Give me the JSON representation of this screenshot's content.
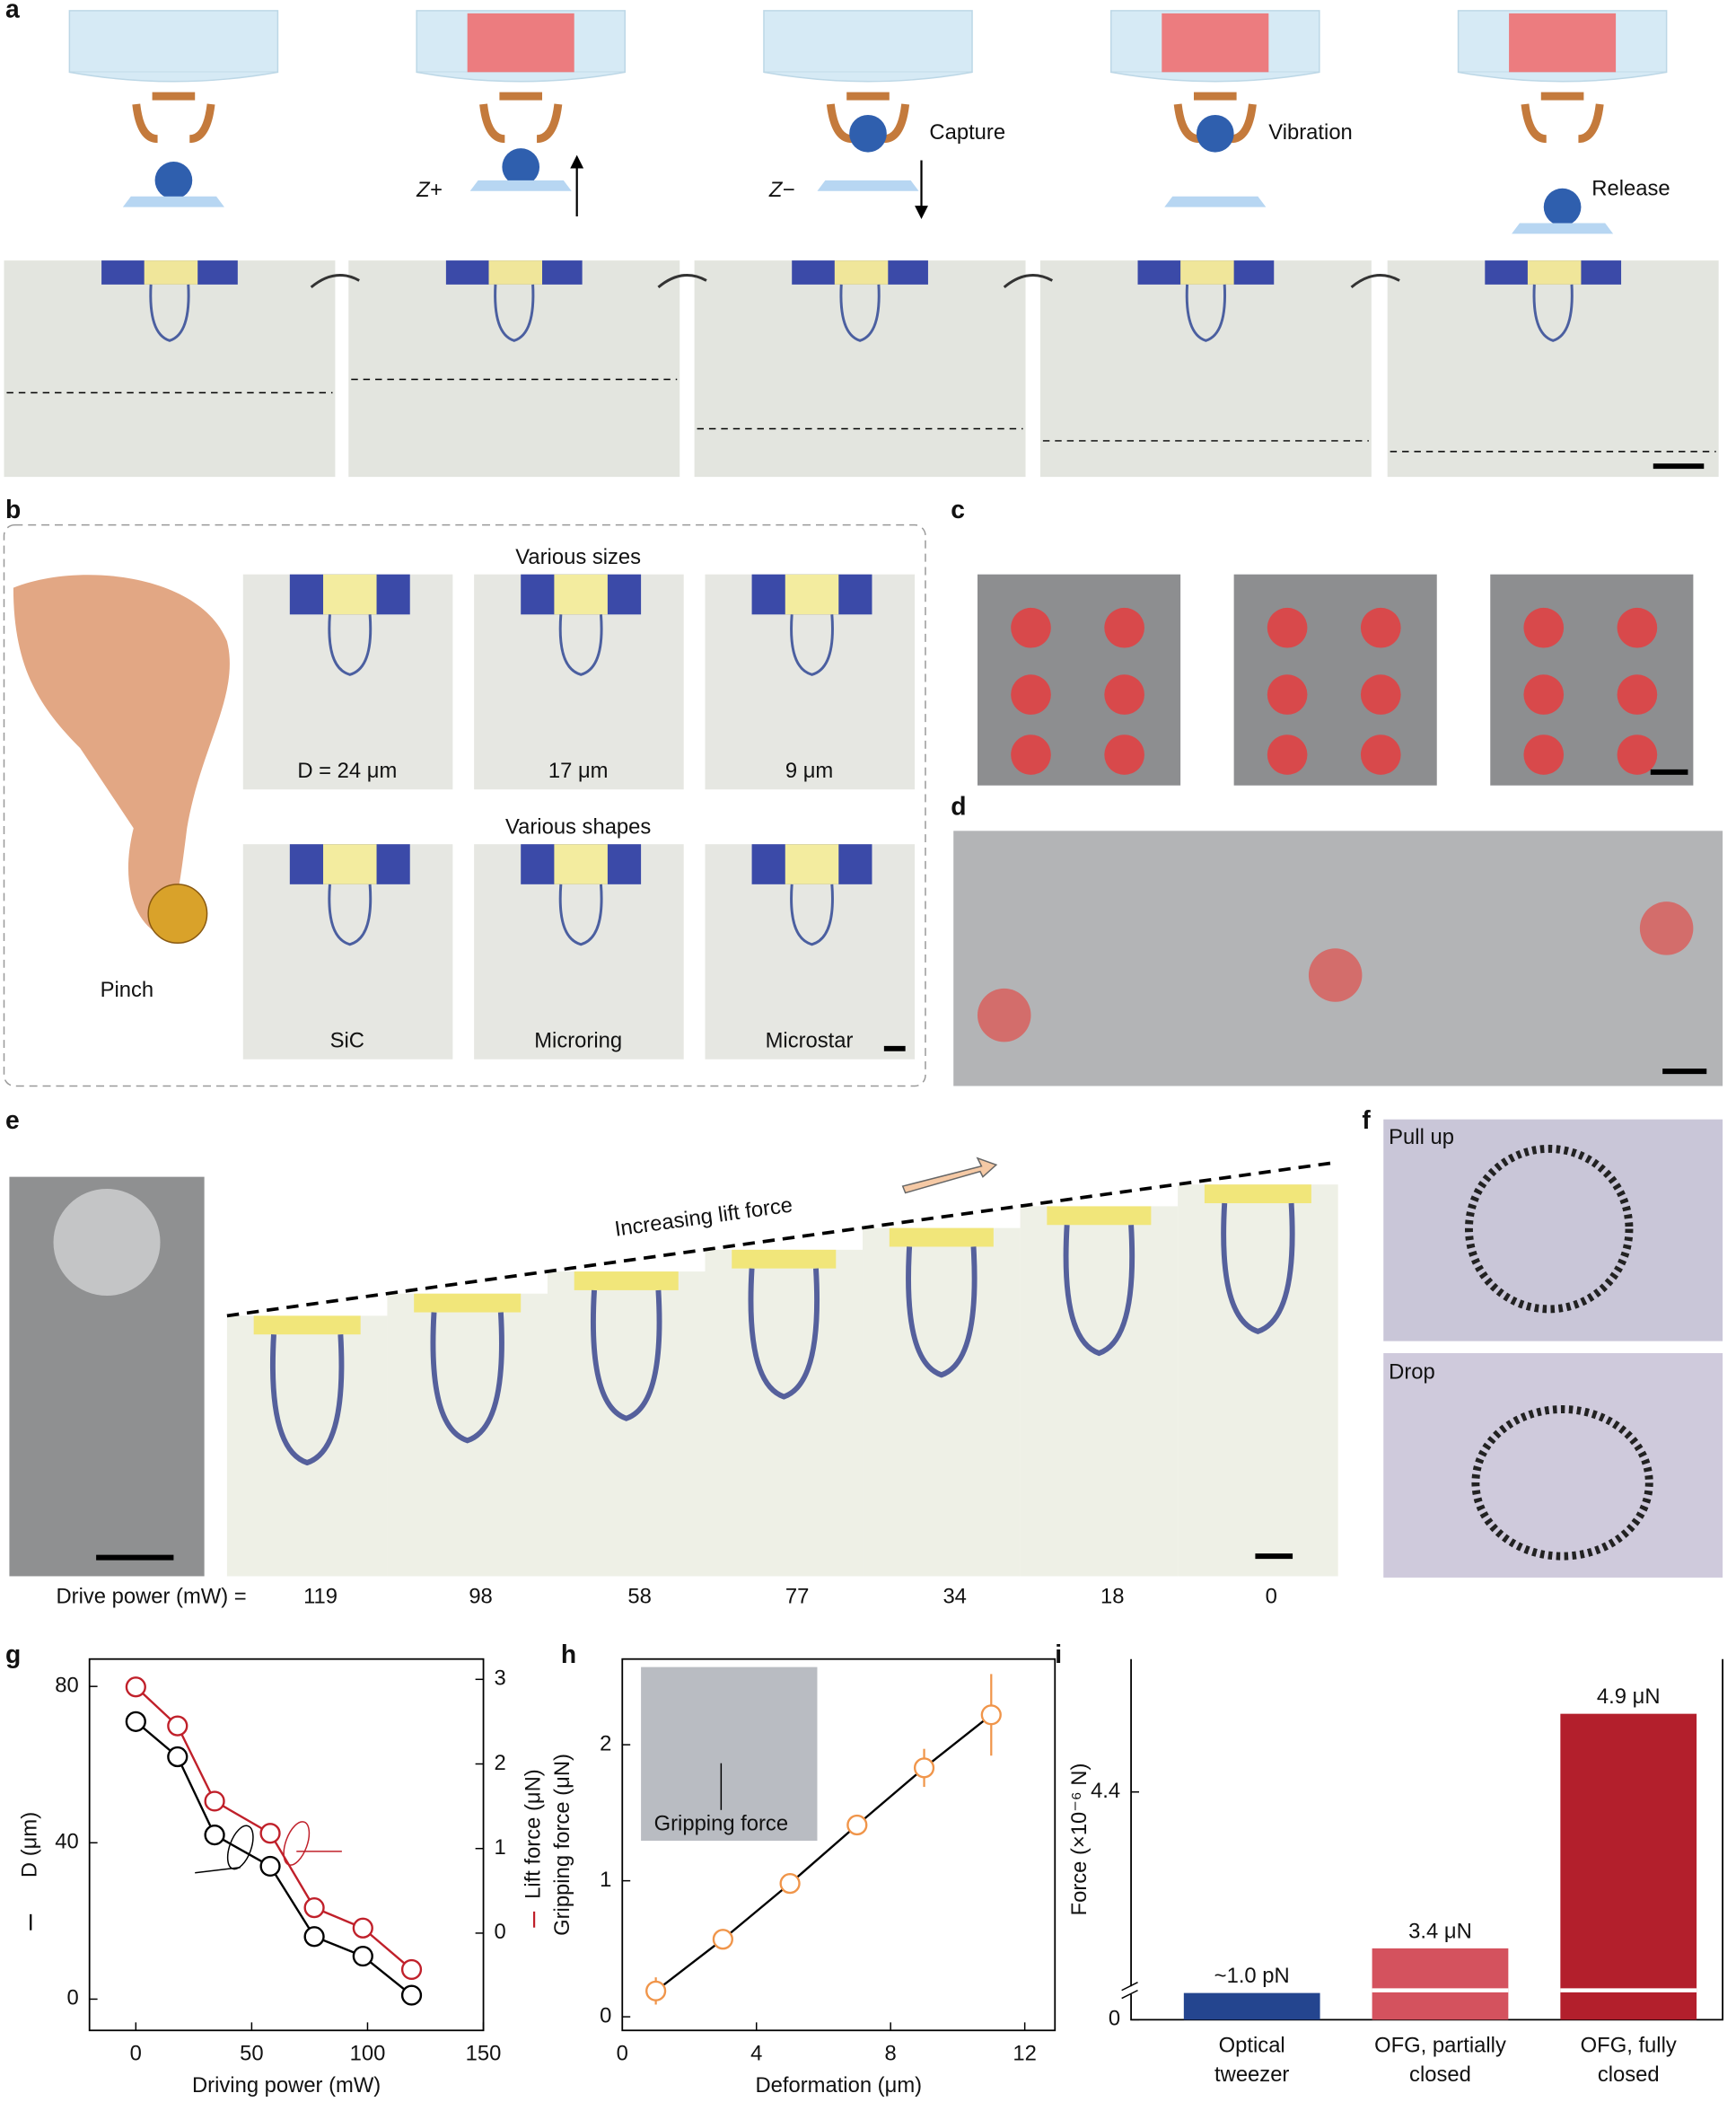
{
  "panels": {
    "a": {
      "label": "a",
      "z_plus": "Z+",
      "z_minus": "Z−",
      "steps": [
        "Capture",
        "Vibration",
        "Release"
      ]
    },
    "b": {
      "label": "b",
      "hand": "Pinch",
      "sizes_title": "Various sizes",
      "sizes": [
        "D = 24 μm",
        "17 μm",
        "9 μm"
      ],
      "shapes_title": "Various shapes",
      "shapes": [
        "SiC",
        "Microring",
        "Microstar"
      ]
    },
    "c": {
      "label": "c"
    },
    "d": {
      "label": "d"
    },
    "e": {
      "label": "e",
      "annotation": "Increasing lift force",
      "drive_power_label": "Drive power (mW) =",
      "drive_power": [
        119,
        98,
        58,
        77,
        34,
        18,
        0
      ]
    },
    "f": {
      "label": "f",
      "top": "Pull up",
      "bottom": "Drop"
    }
  },
  "chart_data": [
    {
      "label": "g",
      "type": "line",
      "xlabel": "Driving power (mW)",
      "ylabel": "D (μm)",
      "y2label": "Lift force (μN)",
      "x": [
        0,
        18,
        34,
        58,
        77,
        98,
        119
      ],
      "series": [
        {
          "color": "#000000",
          "values": [
            71,
            62,
            42,
            34,
            16,
            11,
            1
          ]
        },
        {
          "color": "#c0202a",
          "axis": "y2",
          "values": [
            2.91,
            2.45,
            1.56,
            1.18,
            0.3,
            0.06,
            -0.43
          ]
        }
      ],
      "xlim": [
        -20,
        150
      ],
      "xticks": [
        0,
        50,
        100,
        150
      ],
      "ylim": [
        -8,
        87
      ],
      "yticks": [
        0,
        40,
        80
      ],
      "y2lim": [
        -1.15,
        3.24
      ],
      "y2ticks": [
        0,
        1,
        2,
        3
      ]
    },
    {
      "label": "h",
      "type": "line",
      "xlabel": "Deformation (μm)",
      "ylabel": "Gripping force (μN)",
      "annotation": "Gripping force",
      "x": [
        1,
        3,
        5,
        7,
        9,
        11
      ],
      "values": [
        0.19,
        0.57,
        0.98,
        1.41,
        1.83,
        2.22
      ],
      "errors": [
        0.1,
        0.05,
        0.06,
        0.03,
        0.14,
        0.3
      ],
      "color": "#f0954a",
      "line_color": "#000000",
      "xlim": [
        0,
        12.9
      ],
      "xticks": [
        0,
        4,
        8,
        12
      ],
      "ylim": [
        -0.1,
        2.63
      ],
      "yticks": [
        0,
        1,
        2
      ]
    },
    {
      "label": "i",
      "type": "bar",
      "ylabel": "Force (×10⁻⁶ N)",
      "categories": [
        [
          "Optical",
          "tweezer"
        ],
        [
          "OFG, partially",
          "closed"
        ],
        [
          "OFG, fully",
          "closed"
        ]
      ],
      "values": [
        1e-06,
        3.4,
        4.9
      ],
      "value_labels": [
        "~1.0 pN",
        "3.4 μN",
        "4.9 μN"
      ],
      "colors": [
        "#24458f",
        "#d4525e",
        "#b31f2c"
      ],
      "ylim": [
        3.2,
        5.25
      ],
      "yticks": [
        0,
        4.4
      ],
      "axis_break": true
    }
  ]
}
